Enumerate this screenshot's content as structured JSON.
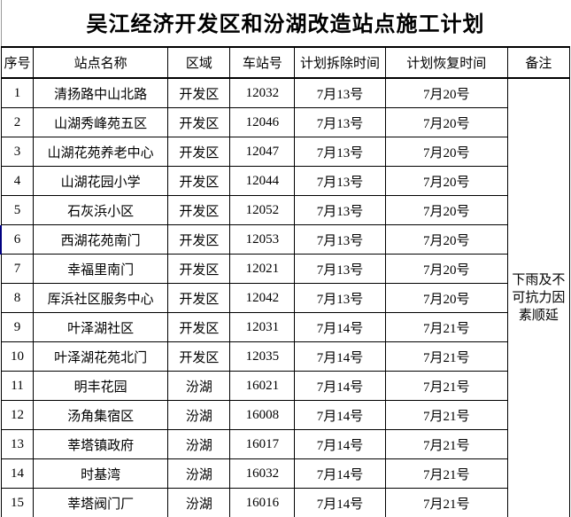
{
  "title": "吴江经济开发区和汾湖改造站点施工计划",
  "colors": {
    "background": "#ffffff",
    "border": "#000000",
    "selection": "#000080"
  },
  "table": {
    "headers": [
      "序号",
      "站点名称",
      "区域",
      "车站号",
      "计划拆除时间",
      "计划恢复时间",
      "备注"
    ],
    "remark": "下雨及不可抗力因素顺延",
    "rows": [
      {
        "no": "1",
        "name": "清扬路中山北路",
        "area": "开发区",
        "station": "12032",
        "demolish": "7月13号",
        "restore": "7月20号"
      },
      {
        "no": "2",
        "name": "山湖秀峰苑五区",
        "area": "开发区",
        "station": "12046",
        "demolish": "7月13号",
        "restore": "7月20号"
      },
      {
        "no": "3",
        "name": "山湖花苑养老中心",
        "area": "开发区",
        "station": "12047",
        "demolish": "7月13号",
        "restore": "7月20号"
      },
      {
        "no": "4",
        "name": "山湖花园小学",
        "area": "开发区",
        "station": "12044",
        "demolish": "7月13号",
        "restore": "7月20号"
      },
      {
        "no": "5",
        "name": "石灰浜小区",
        "area": "开发区",
        "station": "12052",
        "demolish": "7月13号",
        "restore": "7月20号"
      },
      {
        "no": "6",
        "name": "西湖花苑南门",
        "area": "开发区",
        "station": "12053",
        "demolish": "7月13号",
        "restore": "7月20号"
      },
      {
        "no": "7",
        "name": "幸福里南门",
        "area": "开发区",
        "station": "12021",
        "demolish": "7月13号",
        "restore": "7月20号"
      },
      {
        "no": "8",
        "name": "厍浜社区服务中心",
        "area": "开发区",
        "station": "12042",
        "demolish": "7月13号",
        "restore": "7月20号"
      },
      {
        "no": "9",
        "name": "叶泽湖社区",
        "area": "开发区",
        "station": "12031",
        "demolish": "7月14号",
        "restore": "7月21号"
      },
      {
        "no": "10",
        "name": "叶泽湖花苑北门",
        "area": "开发区",
        "station": "12035",
        "demolish": "7月14号",
        "restore": "7月21号"
      },
      {
        "no": "11",
        "name": "明丰花园",
        "area": "汾湖",
        "station": "16021",
        "demolish": "7月14号",
        "restore": "7月21号"
      },
      {
        "no": "12",
        "name": "汤角集宿区",
        "area": "汾湖",
        "station": "16008",
        "demolish": "7月14号",
        "restore": "7月21号"
      },
      {
        "no": "13",
        "name": "莘塔镇政府",
        "area": "汾湖",
        "station": "16017",
        "demolish": "7月14号",
        "restore": "7月21号"
      },
      {
        "no": "14",
        "name": "时基湾",
        "area": "汾湖",
        "station": "16032",
        "demolish": "7月14号",
        "restore": "7月21号"
      },
      {
        "no": "15",
        "name": "莘塔阀门厂",
        "area": "汾湖",
        "station": "16016",
        "demolish": "7月14号",
        "restore": "7月21号"
      }
    ]
  }
}
